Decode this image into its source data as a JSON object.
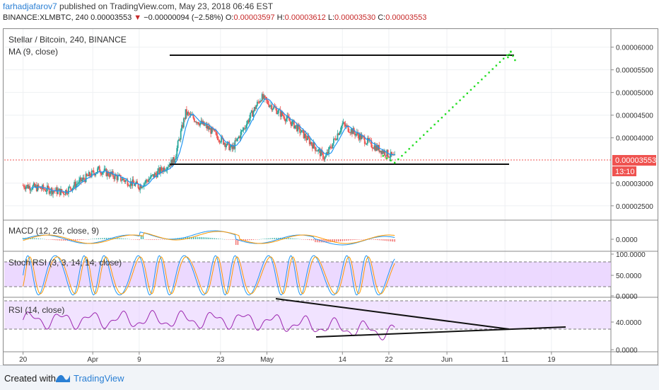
{
  "header": {
    "author": "farhadjafarov7",
    "published_text": " published on TradingView.com, May 23, 2018 06:46 EST",
    "symbol_line": "BINANCE:XLMBTC, 240",
    "last_price": "0.00003553",
    "change": "−0.00000094 (−2.58%)",
    "o_label": "O:",
    "o_value": "0.00003597",
    "h_label": "H:",
    "h_value": "0.00003612",
    "l_label": "L:",
    "l_value": "0.00003530",
    "c_label": "C:",
    "c_value": "0.00003553"
  },
  "panes": {
    "main_title": "Stellar / Bitcoin, 240, BINANCE",
    "ma_label": "MA (9, close)",
    "macd_label": "MACD (12, 26, close, 9)",
    "stoch_label": "Stoch RSI (3, 3, 14, 14, close)",
    "rsi_label": "RSI (14, close)"
  },
  "price_axis": {
    "ticks": [
      "0.00006000",
      "0.00005500",
      "0.00005000",
      "0.00004500",
      "0.00004000",
      "0.00003000",
      "0.00002500"
    ],
    "current_price": "0.00003553",
    "countdown": "13:10",
    "macd_tick": "0.0000",
    "stoch_ticks": [
      "100.0000",
      "50.0000",
      "0.0000"
    ],
    "rsi_ticks": [
      "40.0000",
      "0.0000"
    ]
  },
  "time_axis": {
    "ticks": [
      "20",
      "Apr",
      "9",
      "23",
      "May",
      "14",
      "22",
      "Jun",
      "11",
      "19"
    ]
  },
  "colors": {
    "candle_up": "#26a69a",
    "candle_down": "#ef5350",
    "projection": "#22dd22",
    "trendline": "#111111",
    "macd_line": "#2196f3",
    "signal_line": "#ff9800",
    "stoch_k": "#2196f3",
    "stoch_d": "#ff9800",
    "rsi_line": "#9c27b0",
    "band_fill": "#e6ccff",
    "price_label_bg": "#ef5350",
    "brand": "#2a7fd4"
  },
  "footer": {
    "created": "Created with",
    "brand": "TradingView"
  },
  "chart_data": {
    "type": "candlestick",
    "title": "Stellar / Bitcoin, 240, BINANCE",
    "symbol": "BINANCE:XLMBTC",
    "interval": "240",
    "ohlc_last": {
      "open": 3.597e-05,
      "high": 3.612e-05,
      "low": 3.53e-05,
      "close": 3.553e-05
    },
    "approx_path_points": [
      {
        "x": "Mar 20",
        "y": 2.95e-05
      },
      {
        "x": "Mar 27",
        "y": 2.8e-05
      },
      {
        "x": "Apr 2",
        "y": 3.3e-05
      },
      {
        "x": "Apr 9",
        "y": 2.93e-05
      },
      {
        "x": "Apr 15",
        "y": 3.5e-05
      },
      {
        "x": "Apr 17",
        "y": 4.55e-05
      },
      {
        "x": "Apr 21",
        "y": 4.2e-05
      },
      {
        "x": "Apr 25",
        "y": 3.75e-05
      },
      {
        "x": "Apr 30",
        "y": 4.9e-05
      },
      {
        "x": "May 6",
        "y": 4.25e-05
      },
      {
        "x": "May 11",
        "y": 3.55e-05
      },
      {
        "x": "May 14",
        "y": 4.3e-05
      },
      {
        "x": "May 19",
        "y": 3.85e-05
      },
      {
        "x": "May 23",
        "y": 3.553e-05
      }
    ],
    "projection": [
      {
        "x": "May 23",
        "y": 3.45e-05
      },
      {
        "x": "Jun 12",
        "y": 5.9e-05
      }
    ],
    "horizontal_levels": [
      3.45e-05,
      5.85e-05
    ],
    "ylim": [
      2.2e-05,
      6.4e-05
    ],
    "stoch_rsi_ylim": [
      0,
      100
    ],
    "grid": true
  }
}
